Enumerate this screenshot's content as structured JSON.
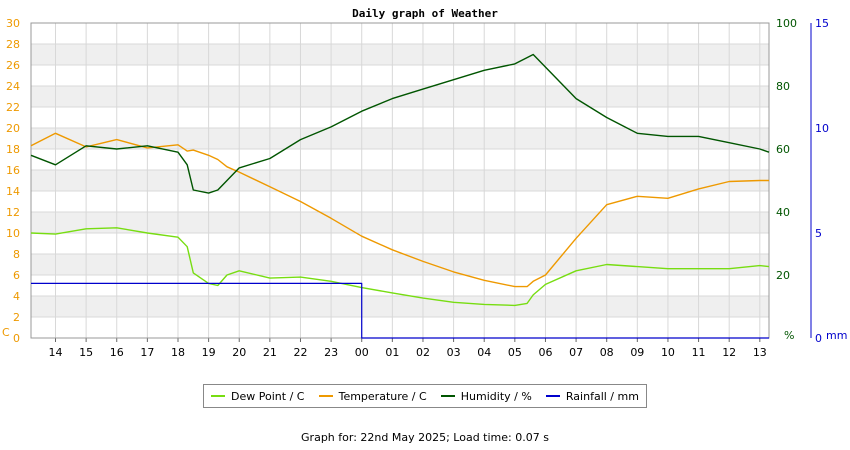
{
  "chart_data": {
    "type": "line",
    "title": "Daily graph of Weather",
    "x_ticks": [
      "14",
      "15",
      "16",
      "17",
      "18",
      "19",
      "20",
      "21",
      "22",
      "23",
      "00",
      "01",
      "02",
      "03",
      "04",
      "05",
      "06",
      "07",
      "08",
      "09",
      "10",
      "11",
      "12",
      "13"
    ],
    "left_axis": {
      "unit": "C",
      "range": [
        0,
        30
      ],
      "ticks": [
        0,
        2,
        4,
        6,
        8,
        10,
        12,
        14,
        16,
        18,
        20,
        22,
        24,
        26,
        28,
        30
      ]
    },
    "right_axis_1": {
      "unit": "%",
      "range": [
        0,
        100
      ],
      "ticks": [
        20,
        40,
        60,
        80,
        100
      ]
    },
    "right_axis_2": {
      "unit": "mm",
      "range": [
        0,
        15
      ],
      "ticks": [
        0,
        5,
        10,
        15
      ]
    },
    "grid": true,
    "legend_position": "bottom",
    "x_hours": [
      13.2,
      14,
      15,
      16,
      17,
      18,
      18.3,
      18.5,
      19,
      19.3,
      19.6,
      20,
      21,
      22,
      23,
      24,
      25,
      26,
      27,
      28,
      29,
      29.4,
      29.6,
      30,
      31,
      32,
      33,
      34,
      35,
      36,
      37,
      37.3
    ],
    "series": [
      {
        "name": "Dew Point / C",
        "color": "#77dd11",
        "axis": "left",
        "values": [
          10.0,
          9.9,
          10.4,
          10.5,
          10.0,
          9.6,
          8.7,
          6.2,
          5.2,
          5.0,
          6.0,
          6.4,
          5.7,
          5.8,
          5.4,
          4.8,
          4.3,
          3.8,
          3.4,
          3.2,
          3.1,
          3.3,
          4.1,
          5.1,
          6.4,
          7.0,
          6.8,
          6.6,
          6.6,
          6.6,
          6.9,
          6.8
        ]
      },
      {
        "name": "Temperature / C",
        "color": "#ee9900",
        "axis": "left",
        "values": [
          18.3,
          19.5,
          18.2,
          18.9,
          18.1,
          18.4,
          17.8,
          17.9,
          17.4,
          17.0,
          16.3,
          15.8,
          14.4,
          13.0,
          11.4,
          9.7,
          8.4,
          7.3,
          6.3,
          5.5,
          4.9,
          4.9,
          5.4,
          6.0,
          9.5,
          12.7,
          13.5,
          13.3,
          14.2,
          14.9,
          15.0,
          15.0
        ]
      },
      {
        "name": "Humidity / %",
        "color": "#005500",
        "axis": "right_1",
        "values": [
          58,
          55,
          61,
          60,
          61,
          59,
          55,
          47,
          46,
          47,
          50,
          54,
          57,
          63,
          67,
          72,
          76,
          79,
          82,
          85,
          87,
          89,
          90,
          86,
          76,
          70,
          65,
          64,
          64,
          62,
          60,
          59
        ]
      },
      {
        "name": "Rainfall / mm",
        "color": "#0000cc",
        "axis": "right_2",
        "values": [
          2.6,
          2.6,
          2.6,
          2.6,
          2.6,
          2.6,
          2.6,
          2.6,
          2.6,
          2.6,
          2.6,
          2.6,
          2.6,
          2.6,
          2.6,
          0,
          0,
          0,
          0,
          0,
          0,
          0,
          0,
          0,
          0,
          0,
          0,
          0,
          0,
          0,
          0,
          0
        ]
      }
    ]
  },
  "footer": "Graph for: 22nd May 2025; Load time: 0.07 s"
}
